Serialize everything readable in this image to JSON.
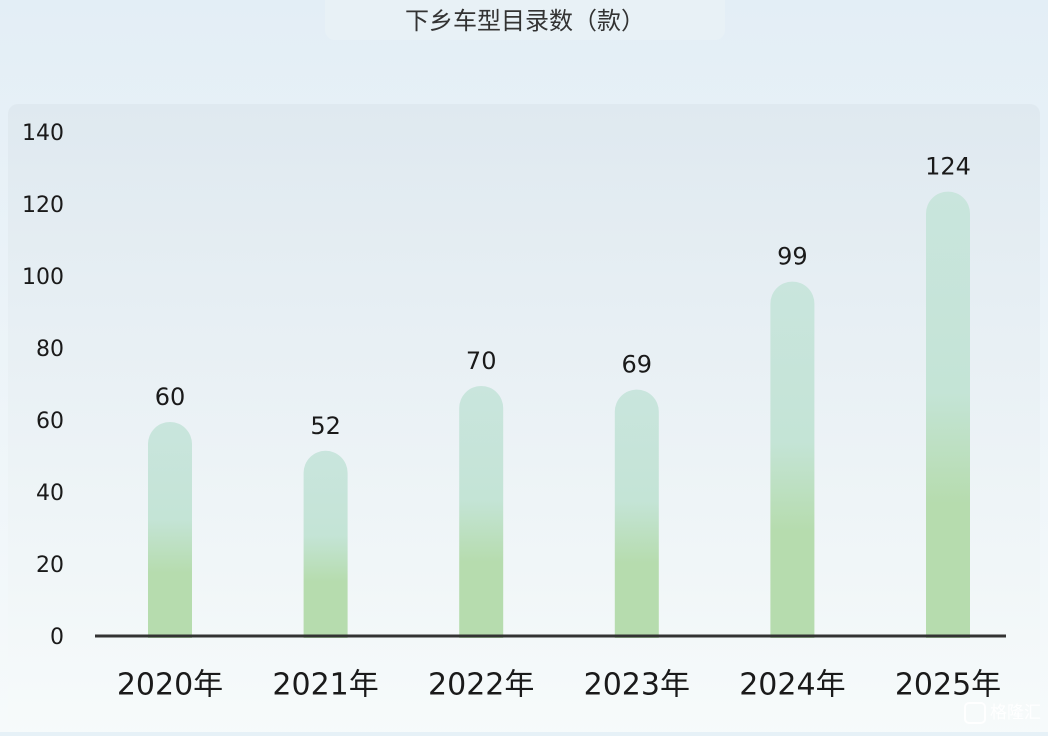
{
  "chart_data": {
    "type": "bar",
    "title": "下乡车型目录数（款）",
    "categories": [
      "2020年",
      "2021年",
      "2022年",
      "2023年",
      "2024年",
      "2025年"
    ],
    "values": [
      60,
      52,
      70,
      69,
      99,
      124
    ],
    "color": "#b6dcae",
    "ylim": [
      0,
      140
    ],
    "yticks": [
      0,
      20,
      40,
      60,
      80,
      100,
      120,
      140
    ],
    "grid": false,
    "watermark": "格隆汇"
  }
}
